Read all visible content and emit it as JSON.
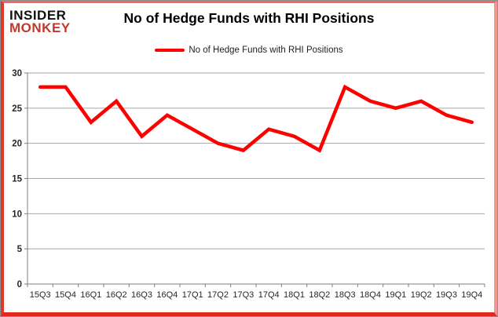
{
  "logo": {
    "line1": "INSIDER",
    "line2": "MONKEY"
  },
  "title": "No of Hedge Funds with RHI Positions",
  "legend": {
    "label": "No of Hedge Funds with RHI Positions"
  },
  "colors": {
    "line": "#FF0000",
    "logo_accent": "#C0392B",
    "grid": "#A6A6A6",
    "axis": "#7F7F7F",
    "axis_text": "#262626",
    "frame_border": "#E2382A"
  },
  "chart_data": {
    "type": "line",
    "title": "No of Hedge Funds with RHI Positions",
    "categories": [
      "15Q3",
      "15Q4",
      "16Q1",
      "16Q2",
      "16Q3",
      "16Q4",
      "17Q1",
      "17Q2",
      "17Q3",
      "17Q4",
      "18Q1",
      "18Q2",
      "18Q3",
      "18Q4",
      "19Q1",
      "19Q2",
      "19Q3",
      "19Q4"
    ],
    "series": [
      {
        "name": "No of Hedge Funds with RHI Positions",
        "values": [
          28,
          28,
          23,
          26,
          21,
          24,
          22,
          20,
          19,
          22,
          21,
          19,
          28,
          26,
          25,
          26,
          24,
          23
        ]
      }
    ],
    "xlabel": "",
    "ylabel": "",
    "ylim": [
      0,
      30
    ],
    "ytick_step": 5,
    "grid": true,
    "legend_position": "top-center"
  }
}
